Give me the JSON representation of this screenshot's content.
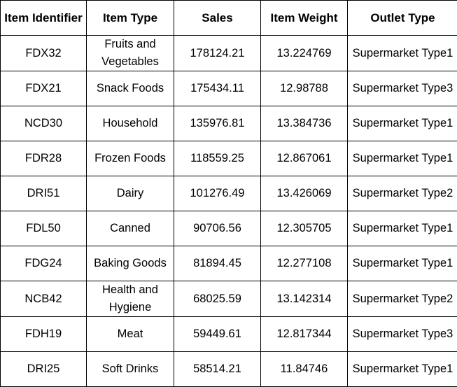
{
  "table": {
    "headers": [
      "Item Identifier",
      "Item Type",
      "Sales",
      "Item Weight",
      "Outlet Type"
    ],
    "rows": [
      [
        "FDX32",
        "Fruits and Vegetables",
        "178124.21",
        "13.224769",
        "Supermarket Type1"
      ],
      [
        "FDX21",
        "Snack Foods",
        "175434.11",
        "12.98788",
        "Supermarket Type3"
      ],
      [
        "NCD30",
        "Household",
        "135976.81",
        "13.384736",
        "Supermarket Type1"
      ],
      [
        "FDR28",
        "Frozen Foods",
        "118559.25",
        "12.867061",
        "Supermarket Type1"
      ],
      [
        "DRI51",
        "Dairy",
        "101276.49",
        "13.426069",
        "Supermarket Type2"
      ],
      [
        "FDL50",
        "Canned",
        "90706.56",
        "12.305705",
        "Supermarket Type1"
      ],
      [
        "FDG24",
        "Baking Goods",
        "81894.45",
        "12.277108",
        "Supermarket Type1"
      ],
      [
        "NCB42",
        "Health and Hygiene",
        "68025.59",
        "13.142314",
        "Supermarket Type2"
      ],
      [
        "FDH19",
        "Meat",
        "59449.61",
        "12.817344",
        "Supermarket Type3"
      ],
      [
        "DRI25",
        "Soft Drinks",
        "58514.21",
        "11.84746",
        "Supermarket Type1"
      ]
    ]
  }
}
